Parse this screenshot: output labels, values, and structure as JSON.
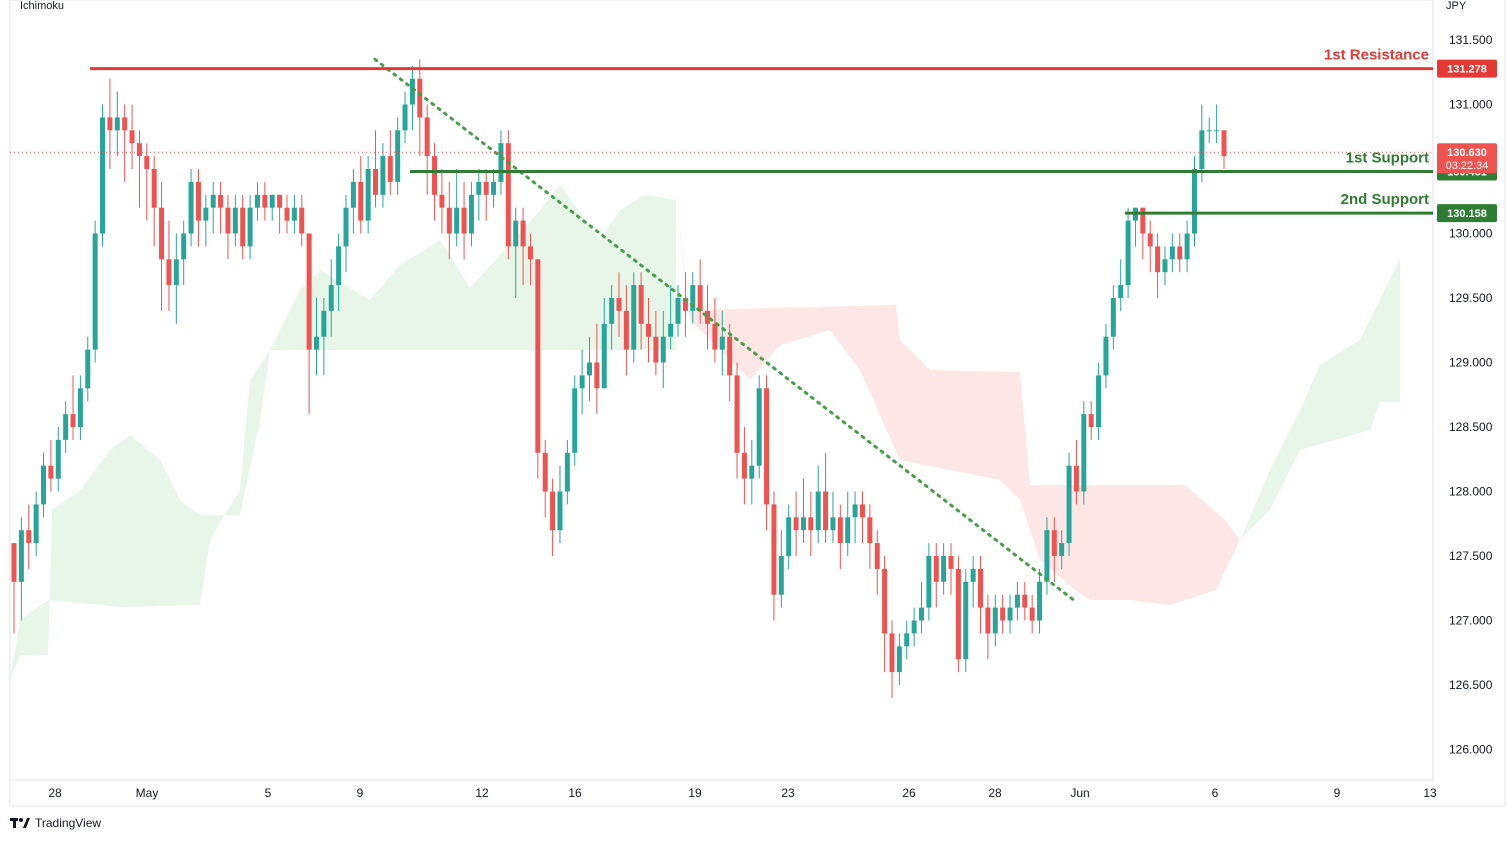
{
  "indicator_label": "Ichimoku",
  "currency_label": "JPY",
  "brand": {
    "name": "TradingView",
    "icon": "tradingview-logo-icon"
  },
  "colors": {
    "up": "#26a69a",
    "down": "#ef5350",
    "resistance": "#e53935",
    "support": "#2e7d32",
    "trendline": "#43a047",
    "cloud_bull": "#e6f4e7",
    "cloud_bear": "#fde4e3",
    "last_price_line": "#ef5350"
  },
  "chart_data": {
    "type": "candlestick",
    "instrument_currency": "JPY",
    "ylim": [
      125.8,
      131.7
    ],
    "y_ticks": [
      "131.500",
      "131.000",
      "130.500",
      "130.000",
      "129.500",
      "129.000",
      "128.500",
      "128.000",
      "127.500",
      "127.000",
      "126.500",
      "126.000"
    ],
    "x_ticks": [
      "28",
      "May",
      "5",
      "9",
      "12",
      "16",
      "19",
      "23",
      "26",
      "28",
      "Jun",
      "6",
      "9",
      "13"
    ],
    "levels": [
      {
        "name": "1st Resistance",
        "value": "131.278",
        "kind": "resistance"
      },
      {
        "name": "1st Support",
        "value": "130.481",
        "kind": "support"
      },
      {
        "name": "2nd Support",
        "value": "130.158",
        "kind": "support"
      }
    ],
    "last_price": {
      "value": "130.630",
      "countdown": "03:22:34"
    },
    "trendline": {
      "from": [
        131.35
      ],
      "to": [
        127.15
      ],
      "style": "dotted"
    },
    "candles": [
      [
        127.6,
        127.3,
        127.6,
        126.9
      ],
      [
        127.3,
        127.7,
        127.8,
        127.0
      ],
      [
        127.7,
        127.6,
        127.9,
        127.4
      ],
      [
        127.6,
        127.9,
        128.0,
        127.5
      ],
      [
        127.9,
        128.2,
        128.3,
        127.8
      ],
      [
        128.2,
        128.1,
        128.4,
        128.0
      ],
      [
        128.1,
        128.4,
        128.5,
        128.0
      ],
      [
        128.4,
        128.6,
        128.7,
        128.3
      ],
      [
        128.6,
        128.5,
        128.9,
        128.4
      ],
      [
        128.5,
        128.8,
        128.9,
        128.4
      ],
      [
        128.8,
        129.1,
        129.2,
        128.7
      ],
      [
        129.1,
        130.0,
        130.1,
        129.0
      ],
      [
        130.0,
        130.9,
        131.0,
        129.9
      ],
      [
        130.9,
        130.8,
        131.2,
        130.5
      ],
      [
        130.8,
        130.9,
        131.1,
        130.6
      ],
      [
        130.9,
        130.8,
        131.0,
        130.4
      ],
      [
        130.8,
        130.7,
        131.0,
        130.5
      ],
      [
        130.7,
        130.6,
        130.8,
        130.2
      ],
      [
        130.6,
        130.5,
        130.7,
        130.1
      ],
      [
        130.5,
        130.2,
        130.6,
        129.9
      ],
      [
        130.2,
        129.8,
        130.4,
        129.4
      ],
      [
        129.8,
        129.6,
        130.1,
        129.4
      ],
      [
        129.6,
        129.8,
        130.0,
        129.3
      ],
      [
        129.8,
        130.0,
        130.1,
        129.6
      ],
      [
        130.0,
        130.4,
        130.5,
        129.9
      ],
      [
        130.4,
        130.1,
        130.5,
        129.9
      ],
      [
        130.1,
        130.2,
        130.3,
        129.9
      ],
      [
        130.2,
        130.3,
        130.4,
        130.0
      ],
      [
        130.3,
        130.2,
        130.4,
        130.0
      ],
      [
        130.2,
        130.0,
        130.3,
        129.8
      ],
      [
        130.0,
        130.2,
        130.3,
        129.9
      ],
      [
        130.2,
        129.9,
        130.3,
        129.8
      ],
      [
        129.9,
        130.2,
        130.3,
        129.8
      ],
      [
        130.2,
        130.3,
        130.4,
        130.1
      ],
      [
        130.3,
        130.2,
        130.4,
        130.1
      ],
      [
        130.2,
        130.3,
        130.3,
        130.1
      ],
      [
        130.3,
        130.2,
        130.3,
        130.0
      ],
      [
        130.2,
        130.1,
        130.3,
        130.0
      ],
      [
        130.1,
        130.2,
        130.3,
        130.0
      ],
      [
        130.2,
        130.0,
        130.3,
        129.9
      ],
      [
        130.0,
        129.1,
        130.0,
        128.6
      ],
      [
        129.1,
        129.2,
        129.5,
        128.9
      ],
      [
        129.2,
        129.4,
        129.5,
        128.9
      ],
      [
        129.4,
        129.6,
        129.8,
        129.2
      ],
      [
        129.6,
        129.9,
        130.0,
        129.4
      ],
      [
        129.9,
        130.2,
        130.3,
        129.7
      ],
      [
        130.2,
        130.4,
        130.5,
        130.0
      ],
      [
        130.4,
        130.1,
        130.6,
        130.0
      ],
      [
        130.1,
        130.5,
        130.6,
        130.0
      ],
      [
        130.5,
        130.3,
        130.8,
        130.2
      ],
      [
        130.3,
        130.6,
        130.7,
        130.2
      ],
      [
        130.6,
        130.4,
        130.8,
        130.3
      ],
      [
        130.4,
        130.8,
        130.9,
        130.3
      ],
      [
        130.8,
        131.0,
        131.1,
        130.7
      ],
      [
        131.0,
        131.2,
        131.3,
        130.8
      ],
      [
        131.2,
        130.9,
        131.35,
        130.6
      ],
      [
        130.9,
        130.6,
        131.0,
        130.3
      ],
      [
        130.6,
        130.3,
        130.7,
        130.1
      ],
      [
        130.3,
        130.2,
        130.5,
        130.0
      ],
      [
        130.2,
        130.0,
        130.4,
        129.8
      ],
      [
        130.0,
        130.2,
        130.5,
        129.9
      ],
      [
        130.2,
        130.0,
        130.4,
        129.8
      ],
      [
        130.0,
        130.3,
        130.4,
        129.9
      ],
      [
        130.3,
        130.4,
        130.5,
        130.1
      ],
      [
        130.4,
        130.3,
        130.5,
        130.1
      ],
      [
        130.3,
        130.4,
        130.5,
        130.2
      ],
      [
        130.4,
        130.7,
        130.8,
        130.3
      ],
      [
        130.7,
        129.9,
        130.8,
        129.8
      ],
      [
        129.9,
        130.1,
        130.2,
        129.5
      ],
      [
        130.1,
        129.9,
        130.2,
        129.6
      ],
      [
        129.9,
        129.8,
        130.0,
        129.6
      ],
      [
        129.8,
        128.3,
        129.8,
        128.1
      ],
      [
        128.3,
        128.0,
        128.4,
        127.8
      ],
      [
        128.0,
        127.7,
        128.1,
        127.5
      ],
      [
        127.7,
        128.0,
        128.2,
        127.6
      ],
      [
        128.0,
        128.3,
        128.4,
        127.9
      ],
      [
        128.3,
        128.8,
        128.9,
        128.2
      ],
      [
        128.8,
        128.9,
        129.1,
        128.6
      ],
      [
        128.9,
        129.0,
        129.2,
        128.7
      ],
      [
        129.0,
        128.8,
        129.3,
        128.6
      ],
      [
        128.8,
        129.3,
        129.5,
        128.8
      ],
      [
        129.3,
        129.5,
        129.6,
        129.1
      ],
      [
        129.5,
        129.4,
        129.7,
        129.2
      ],
      [
        129.4,
        129.1,
        129.6,
        128.9
      ],
      [
        129.1,
        129.6,
        129.7,
        129.0
      ],
      [
        129.6,
        129.3,
        129.7,
        129.1
      ],
      [
        129.3,
        129.2,
        129.5,
        129.0
      ],
      [
        129.2,
        129.0,
        129.4,
        128.9
      ],
      [
        129.0,
        129.2,
        129.4,
        128.8
      ],
      [
        129.2,
        129.3,
        129.6,
        129.1
      ],
      [
        129.3,
        129.5,
        129.6,
        129.2
      ],
      [
        129.5,
        129.4,
        129.7,
        129.2
      ],
      [
        129.4,
        129.6,
        129.7,
        129.3
      ],
      [
        129.6,
        129.4,
        129.8,
        129.3
      ],
      [
        129.4,
        129.3,
        129.6,
        129.1
      ],
      [
        129.3,
        129.1,
        129.5,
        129.0
      ],
      [
        129.1,
        129.2,
        129.4,
        128.9
      ],
      [
        129.2,
        128.9,
        129.3,
        128.7
      ],
      [
        128.9,
        128.3,
        129.0,
        128.1
      ],
      [
        128.3,
        128.1,
        128.5,
        127.9
      ],
      [
        128.1,
        128.2,
        128.4,
        127.9
      ],
      [
        128.2,
        128.8,
        128.9,
        128.1
      ],
      [
        128.8,
        127.9,
        128.9,
        127.7
      ],
      [
        127.9,
        127.2,
        128.0,
        127.0
      ],
      [
        127.2,
        127.5,
        127.7,
        127.1
      ],
      [
        127.5,
        127.8,
        127.9,
        127.4
      ],
      [
        127.8,
        127.7,
        128.0,
        127.5
      ],
      [
        127.7,
        127.8,
        128.1,
        127.6
      ],
      [
        127.8,
        127.7,
        128.0,
        127.5
      ],
      [
        127.7,
        128.0,
        128.2,
        127.6
      ],
      [
        128.0,
        127.7,
        128.3,
        127.6
      ],
      [
        127.7,
        127.8,
        128.0,
        127.6
      ],
      [
        127.8,
        127.6,
        127.9,
        127.4
      ],
      [
        127.6,
        127.8,
        128.0,
        127.5
      ],
      [
        127.8,
        127.9,
        128.0,
        127.6
      ],
      [
        127.9,
        127.8,
        128.0,
        127.6
      ],
      [
        127.8,
        127.6,
        127.9,
        127.4
      ],
      [
        127.6,
        127.4,
        127.7,
        127.2
      ],
      [
        127.4,
        126.9,
        127.5,
        126.6
      ],
      [
        126.9,
        126.6,
        127.0,
        126.4
      ],
      [
        126.6,
        126.8,
        126.9,
        126.5
      ],
      [
        126.8,
        126.9,
        127.0,
        126.7
      ],
      [
        126.9,
        127.0,
        127.1,
        126.8
      ],
      [
        127.0,
        127.1,
        127.3,
        126.9
      ],
      [
        127.1,
        127.5,
        127.6,
        127.0
      ],
      [
        127.5,
        127.3,
        127.6,
        127.1
      ],
      [
        127.3,
        127.5,
        127.6,
        127.2
      ],
      [
        127.5,
        127.4,
        127.6,
        127.2
      ],
      [
        127.4,
        126.7,
        127.5,
        126.6
      ],
      [
        126.7,
        127.3,
        127.4,
        126.6
      ],
      [
        127.3,
        127.4,
        127.5,
        127.1
      ],
      [
        127.4,
        127.1,
        127.5,
        126.9
      ],
      [
        127.1,
        126.9,
        127.2,
        126.7
      ],
      [
        126.9,
        127.1,
        127.2,
        126.8
      ],
      [
        127.1,
        127.0,
        127.2,
        126.9
      ],
      [
        127.0,
        127.1,
        127.2,
        126.9
      ],
      [
        127.1,
        127.2,
        127.3,
        127.0
      ],
      [
        127.2,
        127.1,
        127.3,
        127.0
      ],
      [
        127.1,
        127.0,
        127.2,
        126.9
      ],
      [
        127.0,
        127.3,
        127.4,
        126.9
      ],
      [
        127.3,
        127.7,
        127.8,
        127.2
      ],
      [
        127.7,
        127.5,
        127.8,
        127.3
      ],
      [
        127.5,
        127.6,
        127.7,
        127.4
      ],
      [
        127.6,
        128.2,
        128.3,
        127.5
      ],
      [
        128.2,
        128.0,
        128.4,
        127.9
      ],
      [
        128.0,
        128.6,
        128.7,
        127.9
      ],
      [
        128.6,
        128.5,
        128.7,
        128.4
      ],
      [
        128.5,
        128.9,
        129.0,
        128.4
      ],
      [
        128.9,
        129.2,
        129.3,
        128.8
      ],
      [
        129.2,
        129.5,
        129.6,
        129.1
      ],
      [
        129.5,
        129.6,
        129.8,
        129.4
      ],
      [
        129.6,
        130.1,
        130.2,
        129.5
      ],
      [
        130.1,
        130.2,
        130.2,
        129.9
      ],
      [
        130.2,
        130.0,
        130.2,
        129.8
      ],
      [
        130.0,
        129.9,
        130.1,
        129.7
      ],
      [
        129.9,
        129.7,
        130.0,
        129.5
      ],
      [
        129.7,
        129.8,
        129.9,
        129.6
      ],
      [
        129.8,
        129.9,
        130.0,
        129.7
      ],
      [
        129.9,
        129.8,
        130.0,
        129.7
      ],
      [
        129.8,
        130.0,
        130.1,
        129.7
      ],
      [
        130.0,
        130.5,
        130.6,
        129.9
      ],
      [
        130.5,
        130.8,
        131.0,
        130.4
      ],
      [
        130.8,
        130.8,
        130.9,
        130.7
      ],
      [
        130.8,
        130.8,
        131.0,
        130.7
      ],
      [
        130.8,
        130.6,
        130.8,
        130.5
      ]
    ]
  },
  "x_axis_labels": [
    "28",
    "May",
    "5",
    "9",
    "12",
    "16",
    "19",
    "23",
    "26",
    "28",
    "Jun",
    "6",
    "9",
    "13"
  ]
}
